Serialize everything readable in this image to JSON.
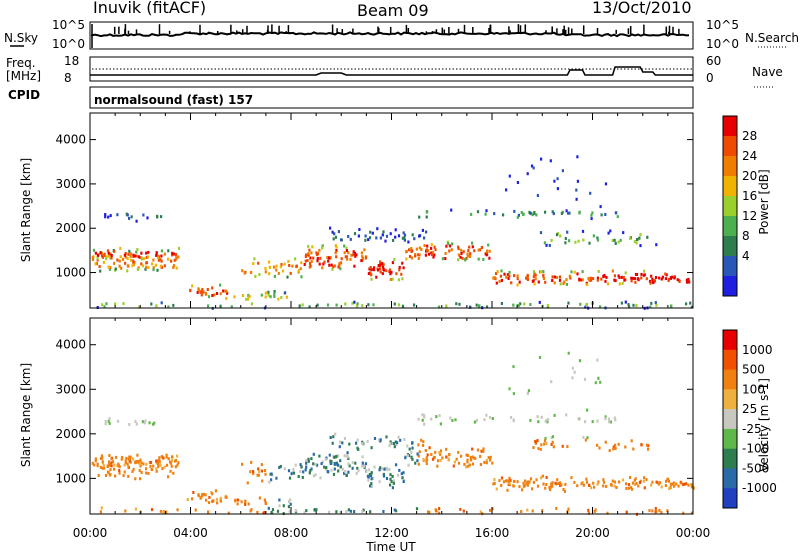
{
  "header": {
    "station": "Inuvik (fitACF)",
    "beam": "Beam 09",
    "date": "13/Oct/2010"
  },
  "top_panels": {
    "nsky_label": "N.Sky",
    "nsearch_label": "N.Search",
    "nsky_ticks": [
      "10^5",
      "10^0"
    ],
    "nsearch_ticks": [
      "10^5",
      "10^0"
    ],
    "freq_label": "Freq.",
    "freq_unit": "[MHz]",
    "freq_ticks": [
      "18",
      "8"
    ],
    "nave_label": "Nave",
    "nave_ticks": [
      "60",
      "0"
    ],
    "cpid_label": "CPID",
    "cpid_text": "normalsound (fast) 157"
  },
  "colors": {
    "power_scale": [
      "#1f1fe0",
      "#2a56b8",
      "#2e7d4f",
      "#4caf50",
      "#9bcf2e",
      "#f0b400",
      "#f07d00",
      "#f04a00",
      "#e80000"
    ],
    "velocity_scale": [
      "#2040c0",
      "#2a6aa8",
      "#2e7d4f",
      "#5fb84a",
      "#c8c8c0",
      "#f0b040",
      "#f08010",
      "#f05000",
      "#e80000"
    ]
  },
  "chart_data": [
    {
      "type": "heatmap",
      "title": "Power",
      "xlabel": "",
      "ylabel": "Slant Range [km]",
      "x_ticks": [
        "00:00",
        "04:00",
        "08:00",
        "12:00",
        "16:00",
        "20:00",
        "00:00"
      ],
      "y_ticks": [
        "1000",
        "2000",
        "3000",
        "4000"
      ],
      "xlim_hours": [
        0,
        24
      ],
      "ylim_km": [
        200,
        4600
      ],
      "colorbar_label": "Power [dB]",
      "colorbar_ticks": [
        "28",
        "24",
        "20",
        "16",
        "12",
        "8",
        "4"
      ],
      "colorbar_range": [
        0,
        30
      ]
    },
    {
      "type": "heatmap",
      "title": "Velocity",
      "xlabel": "Time UT",
      "ylabel": "Slant Range [km]",
      "x_ticks": [
        "00:00",
        "04:00",
        "08:00",
        "12:00",
        "16:00",
        "20:00",
        "00:00"
      ],
      "y_ticks": [
        "1000",
        "2000",
        "3000",
        "4000"
      ],
      "xlim_hours": [
        0,
        24
      ],
      "ylim_km": [
        200,
        4600
      ],
      "colorbar_label": "Velocity [m s-1]",
      "colorbar_ticks": [
        "1000",
        "500",
        "100",
        "25",
        "-25",
        "-100",
        "-500",
        "-1000"
      ]
    }
  ]
}
